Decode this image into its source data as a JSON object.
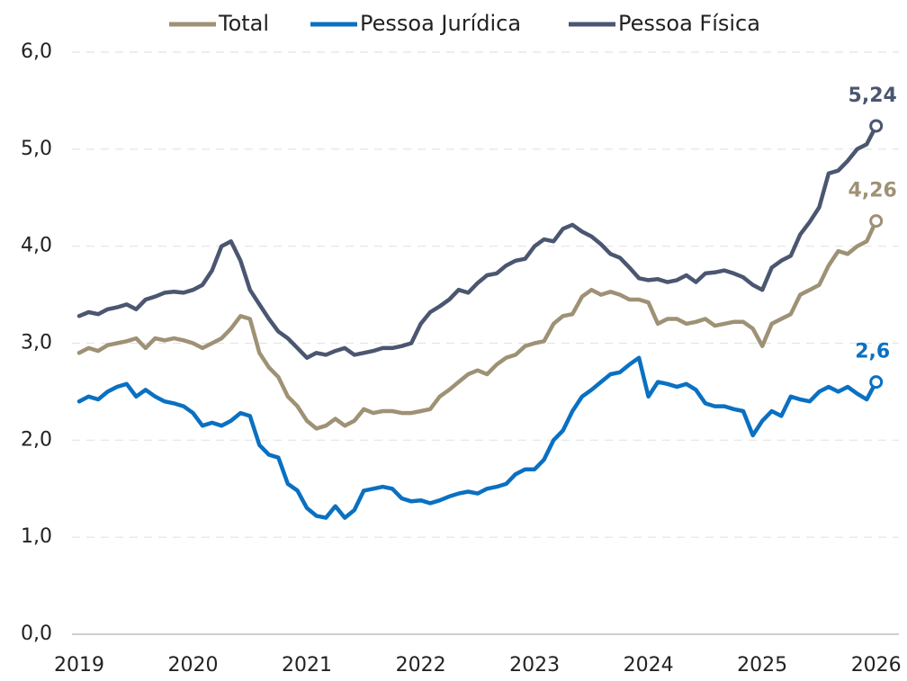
{
  "chart_data": {
    "type": "line",
    "x": [
      2019,
      2019.083,
      2019.167,
      2019.25,
      2019.333,
      2019.417,
      2019.5,
      2019.583,
      2019.667,
      2019.75,
      2019.833,
      2019.917,
      2020,
      2020.083,
      2020.167,
      2020.25,
      2020.333,
      2020.417,
      2020.5,
      2020.583,
      2020.667,
      2020.75,
      2020.833,
      2020.917,
      2021,
      2021.083,
      2021.167,
      2021.25,
      2021.333,
      2021.417,
      2021.5,
      2021.583,
      2021.667,
      2021.75,
      2021.833,
      2021.917,
      2022,
      2022.083,
      2022.167,
      2022.25,
      2022.333,
      2022.417,
      2022.5,
      2022.583,
      2022.667,
      2022.75,
      2022.833,
      2022.917,
      2023,
      2023.083,
      2023.167,
      2023.25,
      2023.333,
      2023.417,
      2023.5,
      2023.583,
      2023.667,
      2023.75,
      2023.833,
      2023.917,
      2024,
      2024.083,
      2024.167,
      2024.25,
      2024.333,
      2024.417,
      2024.5,
      2024.583,
      2024.667,
      2024.75,
      2024.833,
      2024.917,
      2025,
      2025.083,
      2025.167,
      2025.25,
      2025.333,
      2025.417,
      2025.5,
      2025.583,
      2025.667,
      2025.75,
      2025.833,
      2025.917,
      2026
    ],
    "series": [
      {
        "name": "Total",
        "color": "#9e9175",
        "values": [
          2.9,
          2.95,
          2.92,
          2.98,
          3.0,
          3.02,
          3.05,
          2.95,
          3.05,
          3.03,
          3.05,
          3.03,
          3.0,
          2.95,
          3.0,
          3.05,
          3.15,
          3.28,
          3.25,
          2.9,
          2.75,
          2.65,
          2.45,
          2.35,
          2.2,
          2.12,
          2.15,
          2.22,
          2.15,
          2.2,
          2.32,
          2.28,
          2.3,
          2.3,
          2.28,
          2.28,
          2.3,
          2.32,
          2.45,
          2.52,
          2.6,
          2.68,
          2.72,
          2.68,
          2.78,
          2.85,
          2.88,
          2.97,
          3.0,
          3.02,
          3.2,
          3.28,
          3.3,
          3.48,
          3.55,
          3.5,
          3.53,
          3.5,
          3.45,
          3.45,
          3.42,
          3.2,
          3.25,
          3.25,
          3.2,
          3.22,
          3.25,
          3.18,
          3.2,
          3.22,
          3.22,
          3.15,
          2.97,
          3.2,
          3.25,
          3.3,
          3.5,
          3.55,
          3.6,
          3.8,
          3.95,
          3.92,
          4.0,
          4.05,
          4.26
        ],
        "value_labels": [
          null,
          null,
          null,
          null,
          null,
          null,
          null,
          null,
          null,
          null,
          null,
          null,
          null,
          null,
          null,
          null,
          null,
          null,
          null,
          null,
          null,
          null,
          null,
          null,
          null,
          null,
          null,
          null,
          null,
          null,
          null,
          null,
          null,
          null,
          null,
          null,
          null,
          null,
          null,
          null,
          null,
          null,
          null,
          null,
          null,
          null,
          null,
          null,
          null,
          null,
          null,
          null,
          null,
          null,
          null,
          null,
          null,
          null,
          null,
          null,
          null,
          null,
          null,
          null,
          null,
          null,
          null,
          null,
          null,
          null,
          null,
          null,
          null,
          null,
          null,
          null,
          null,
          null,
          null,
          null,
          null,
          null,
          null,
          null,
          "4,26"
        ]
      },
      {
        "name": "Pessoa Jurídica",
        "color": "#0a70c2",
        "values": [
          2.4,
          2.45,
          2.42,
          2.5,
          2.55,
          2.58,
          2.45,
          2.52,
          2.45,
          2.4,
          2.38,
          2.35,
          2.28,
          2.15,
          2.18,
          2.15,
          2.2,
          2.28,
          2.25,
          1.95,
          1.85,
          1.82,
          1.55,
          1.48,
          1.3,
          1.22,
          1.2,
          1.32,
          1.2,
          1.28,
          1.48,
          1.5,
          1.52,
          1.5,
          1.4,
          1.37,
          1.38,
          1.35,
          1.38,
          1.42,
          1.45,
          1.47,
          1.45,
          1.5,
          1.52,
          1.55,
          1.65,
          1.7,
          1.7,
          1.8,
          2.0,
          2.1,
          2.3,
          2.45,
          2.52,
          2.6,
          2.68,
          2.7,
          2.78,
          2.85,
          2.45,
          2.6,
          2.58,
          2.55,
          2.58,
          2.52,
          2.38,
          2.35,
          2.35,
          2.32,
          2.3,
          2.05,
          2.2,
          2.3,
          2.25,
          2.45,
          2.42,
          2.4,
          2.5,
          2.55,
          2.5,
          2.55,
          2.48,
          2.42,
          2.6
        ],
        "value_labels": [
          null,
          null,
          null,
          null,
          null,
          null,
          null,
          null,
          null,
          null,
          null,
          null,
          null,
          null,
          null,
          null,
          null,
          null,
          null,
          null,
          null,
          null,
          null,
          null,
          null,
          null,
          null,
          null,
          null,
          null,
          null,
          null,
          null,
          null,
          null,
          null,
          null,
          null,
          null,
          null,
          null,
          null,
          null,
          null,
          null,
          null,
          null,
          null,
          null,
          null,
          null,
          null,
          null,
          null,
          null,
          null,
          null,
          null,
          null,
          null,
          null,
          null,
          null,
          null,
          null,
          null,
          null,
          null,
          null,
          null,
          null,
          null,
          null,
          null,
          null,
          null,
          null,
          null,
          null,
          null,
          null,
          null,
          null,
          null,
          "2,6"
        ]
      },
      {
        "name": "Pessoa Física",
        "color": "#4b5670",
        "values": [
          3.28,
          3.32,
          3.3,
          3.35,
          3.37,
          3.4,
          3.35,
          3.45,
          3.48,
          3.52,
          3.53,
          3.52,
          3.55,
          3.6,
          3.75,
          4.0,
          4.05,
          3.85,
          3.55,
          3.4,
          3.25,
          3.12,
          3.05,
          2.95,
          2.85,
          2.9,
          2.88,
          2.92,
          2.95,
          2.88,
          2.9,
          2.92,
          2.95,
          2.95,
          2.97,
          3.0,
          3.2,
          3.32,
          3.38,
          3.45,
          3.55,
          3.52,
          3.62,
          3.7,
          3.72,
          3.8,
          3.85,
          3.87,
          4.0,
          4.07,
          4.05,
          4.18,
          4.22,
          4.15,
          4.1,
          4.02,
          3.92,
          3.88,
          3.78,
          3.67,
          3.65,
          3.66,
          3.63,
          3.65,
          3.7,
          3.63,
          3.72,
          3.73,
          3.75,
          3.72,
          3.68,
          3.6,
          3.55,
          3.78,
          3.85,
          3.9,
          4.12,
          4.25,
          4.4,
          4.75,
          4.78,
          4.88,
          5.0,
          5.05,
          5.24
        ],
        "value_labels": [
          null,
          null,
          null,
          null,
          null,
          null,
          null,
          null,
          null,
          null,
          null,
          null,
          null,
          null,
          null,
          null,
          null,
          null,
          null,
          null,
          null,
          null,
          null,
          null,
          null,
          null,
          null,
          null,
          null,
          null,
          null,
          null,
          null,
          null,
          null,
          null,
          null,
          null,
          null,
          null,
          null,
          null,
          null,
          null,
          null,
          null,
          null,
          null,
          null,
          null,
          null,
          null,
          null,
          null,
          null,
          null,
          null,
          null,
          null,
          null,
          null,
          null,
          null,
          null,
          null,
          null,
          null,
          null,
          null,
          null,
          null,
          null,
          null,
          null,
          null,
          null,
          null,
          null,
          null,
          null,
          null,
          null,
          null,
          null,
          "5,24"
        ]
      }
    ],
    "xlim": [
      2019,
      2026.2
    ],
    "xticks": [
      2019,
      2020,
      2021,
      2022,
      2023,
      2024,
      2025,
      2026
    ],
    "ylim": [
      0,
      6
    ],
    "yticks": [
      {
        "value": 0,
        "label": "0,0"
      },
      {
        "value": 1,
        "label": "1,0"
      },
      {
        "value": 2,
        "label": "2,0"
      },
      {
        "value": 3,
        "label": "3,0"
      },
      {
        "value": 4,
        "label": "4,0"
      },
      {
        "value": 5,
        "label": "5,0"
      },
      {
        "value": 6,
        "label": "6,0"
      }
    ],
    "grid": true,
    "legend": "top"
  }
}
